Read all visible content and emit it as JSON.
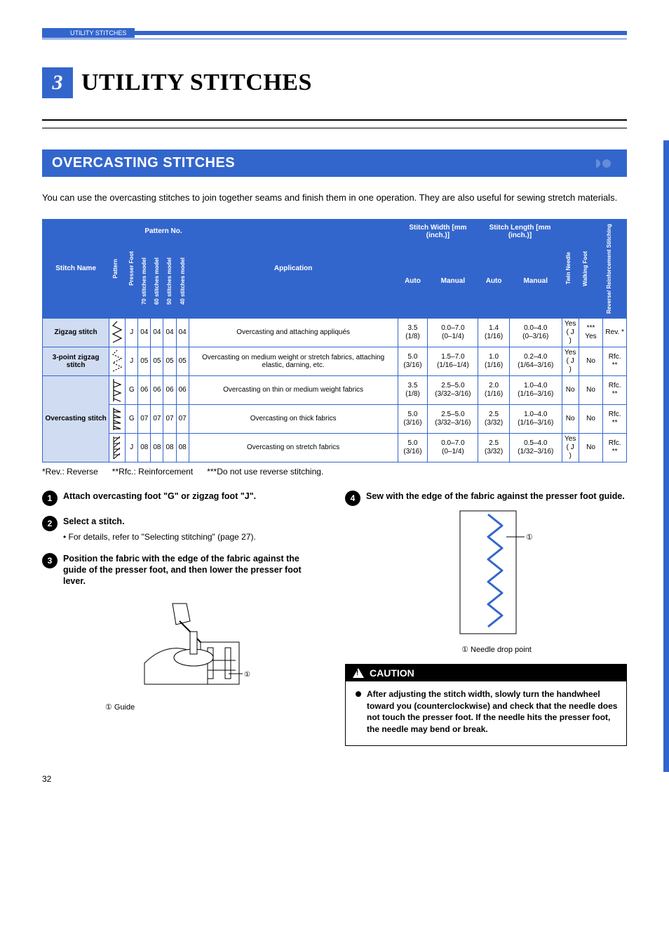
{
  "running_head": "UTILITY STITCHES",
  "chapter": {
    "number": "3",
    "title": "UTILITY STITCHES"
  },
  "section": {
    "title": "OVERCASTING STITCHES"
  },
  "intro": "You can use the overcasting stitches to join together seams and finish them in one operation. They are also useful for sewing stretch materials.",
  "table": {
    "headers": {
      "stitch_name": "Stitch Name",
      "pattern": "Pattern",
      "presser_foot": "Presser Foot",
      "pattern_no": "Pattern No.",
      "models": [
        "70 stitches model",
        "60 stitches model",
        "50 stitches model",
        "40 stitches model"
      ],
      "application": "Application",
      "stitch_width": "Stitch Width [mm (inch.)]",
      "stitch_length": "Stitch Length [mm (inch.)]",
      "auto": "Auto",
      "manual": "Manual",
      "twin_needle": "Twin Needle",
      "walking_foot": "Walking Foot",
      "reinforcement": "Reverse/ Reinforcement Stitching"
    },
    "rows": [
      {
        "name": "Zigzag stitch",
        "rowspan": 1,
        "foot": "J",
        "nums": [
          "04",
          "04",
          "04",
          "04"
        ],
        "app": "Overcasting and attaching appliqués",
        "w_auto": "3.5 (1/8)",
        "w_man": "0.0–7.0 (0–1/4)",
        "l_auto": "1.4 (1/16)",
        "l_man": "0.0–4.0 (0–3/16)",
        "twin": "Yes ( J )",
        "walk": "*** Yes",
        "rev": "Rev. *"
      },
      {
        "name": "3-point zigzag stitch",
        "rowspan": 1,
        "foot": "J",
        "nums": [
          "05",
          "05",
          "05",
          "05"
        ],
        "app": "Overcasting on medium weight or stretch fabrics, attaching elastic, darning, etc.",
        "w_auto": "5.0 (3/16)",
        "w_man": "1.5–7.0 (1/16–1/4)",
        "l_auto": "1.0 (1/16)",
        "l_man": "0.2–4.0 (1/64–3/16)",
        "twin": "Yes ( J )",
        "walk": "No",
        "rev": "Rfc. **"
      },
      {
        "name": "Overcasting stitch",
        "rowspan": 3,
        "foot": "G",
        "nums": [
          "06",
          "06",
          "06",
          "06"
        ],
        "app": "Overcasting on thin or medium weight fabrics",
        "w_auto": "3.5 (1/8)",
        "w_man": "2.5–5.0 (3/32–3/16)",
        "l_auto": "2.0 (1/16)",
        "l_man": "1.0–4.0 (1/16–3/16)",
        "twin": "No",
        "walk": "No",
        "rev": "Rfc. **"
      },
      {
        "name": "",
        "rowspan": 0,
        "foot": "G",
        "nums": [
          "07",
          "07",
          "07",
          "07"
        ],
        "app": "Overcasting on thick fabrics",
        "w_auto": "5.0 (3/16)",
        "w_man": "2.5–5.0 (3/32–3/16)",
        "l_auto": "2.5 (3/32)",
        "l_man": "1.0–4.0 (1/16–3/16)",
        "twin": "No",
        "walk": "No",
        "rev": "Rfc. **"
      },
      {
        "name": "",
        "rowspan": 0,
        "foot": "J",
        "nums": [
          "08",
          "08",
          "08",
          "08"
        ],
        "app": "Overcasting on stretch fabrics",
        "w_auto": "5.0 (3/16)",
        "w_man": "0.0–7.0 (0–1/4)",
        "l_auto": "2.5 (3/32)",
        "l_man": "0.5–4.0 (1/32–3/16)",
        "twin": "Yes ( J )",
        "walk": "No",
        "rev": "Rfc. **"
      }
    ]
  },
  "footnotes": "*Rev.: Reverse      **Rfc.: Reinforcement      ***Do not use reverse stitching.",
  "steps": [
    {
      "n": "1",
      "title": "Attach overcasting foot \"G\" or zigzag foot \"J\"."
    },
    {
      "n": "2",
      "title": "Select a stitch.",
      "sub": "• For details, refer to \"Selecting stitching\" (page 27)."
    },
    {
      "n": "3",
      "title": "Position the fabric with the edge of the fabric against the guide of the presser foot, and then lower the presser foot lever.",
      "callout": "① Guide"
    },
    {
      "n": "4",
      "title": "Sew with the edge of the fabric against the presser foot guide.",
      "callout": "① Needle drop point"
    }
  ],
  "caution": {
    "heading": "CAUTION",
    "body": "After adjusting the stitch width, slowly turn the handwheel toward you (counterclockwise) and check that the needle does not touch the presser foot. If the needle hits the presser foot, the needle may bend or break."
  },
  "page_number": "32",
  "colors": {
    "brand": "#3366cc",
    "row": "#d0dcf2"
  }
}
